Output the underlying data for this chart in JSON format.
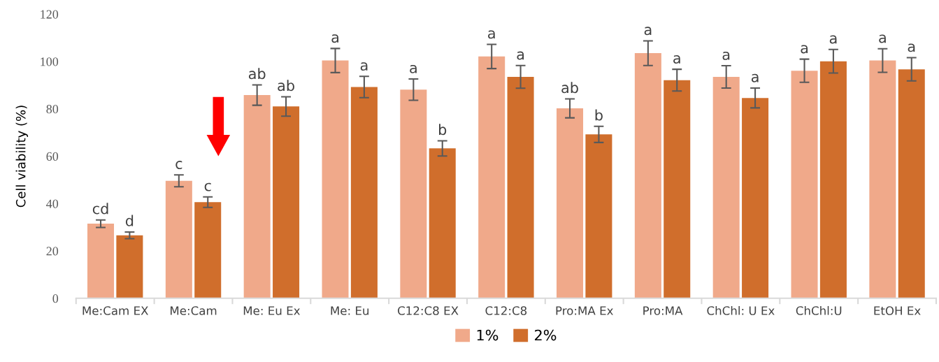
{
  "chart_data": {
    "type": "bar",
    "ylabel": "Cell viability (%)",
    "categories": [
      "Me:Cam EX",
      "Me:Cam",
      "Me: Eu Ex",
      "Me: Eu",
      "C12:C8 EX",
      "C12:C8",
      "Pro:MA Ex",
      "Pro:MA",
      "ChChl: U Ex",
      "ChChl:U",
      "EtOH Ex"
    ],
    "series": [
      {
        "name": "1%",
        "color": "#f0a98a",
        "values": [
          31.5,
          49.6,
          85.8,
          100.4,
          88.1,
          102.1,
          80.2,
          103.5,
          93.5,
          96.1,
          100.4
        ],
        "errors": [
          1.6,
          2.5,
          4.3,
          5.1,
          4.5,
          5.1,
          4.0,
          5.2,
          4.7,
          4.9,
          5.0
        ],
        "value_labels": [
          "cd",
          "c",
          "ab",
          "a",
          "a",
          "a",
          "ab",
          "a",
          "a",
          "a",
          "a"
        ]
      },
      {
        "name": "2%",
        "color": "#d06e2c",
        "values": [
          26.6,
          40.6,
          81.0,
          89.2,
          63.3,
          93.5,
          69.2,
          92.1,
          84.6,
          100.1,
          96.7
        ],
        "errors": [
          1.4,
          2.2,
          4.1,
          4.5,
          3.2,
          4.8,
          3.4,
          4.6,
          4.2,
          5.0,
          4.9
        ],
        "value_labels": [
          "d",
          "c",
          "ab",
          "a",
          "b",
          "a",
          "b",
          "a",
          "a",
          "a",
          "a"
        ]
      }
    ],
    "ylim": [
      0,
      120
    ],
    "yticks": [
      0,
      20,
      40,
      60,
      80,
      100,
      120
    ],
    "legend": "bottom",
    "grid": false
  }
}
